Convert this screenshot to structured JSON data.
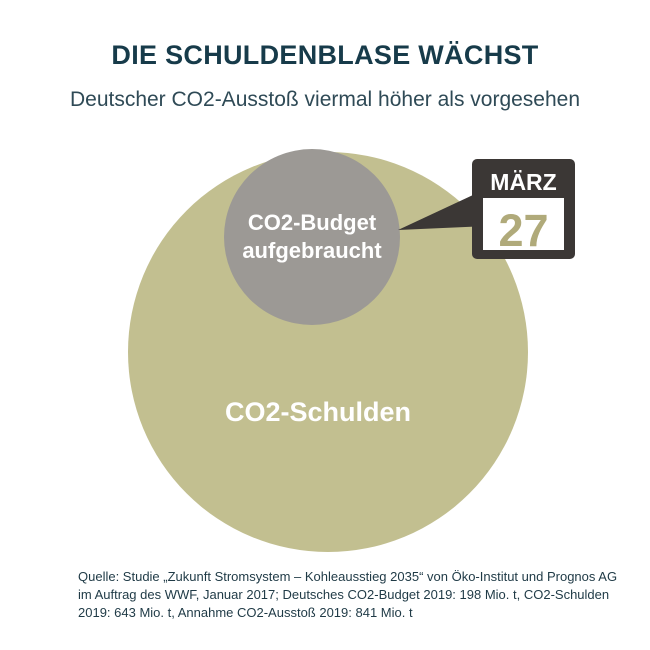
{
  "header": {
    "title": "DIE SCHULDENBLASE WÄCHST",
    "subtitle": "Deutscher CO2-Ausstoß viermal höher als vorgesehen"
  },
  "chart_data": {
    "type": "bubble",
    "bubbles": [
      {
        "label": "CO2-Schulden",
        "color": "#c2bf90"
      },
      {
        "label_line1": "CO2-Budget",
        "label_line2": "aufgebraucht",
        "color": "#9c9995"
      }
    ]
  },
  "calendar": {
    "month": "MÄRZ",
    "day": "27",
    "frame_color": "#3b3735",
    "day_color": "#b0aa7a"
  },
  "source": {
    "line1": "Quelle: Studie „Zukunft Stromsystem – Kohleausstieg 2035“ von Öko-Institut und Prognos AG",
    "line2": "im Auftrag des WWF, Januar 2017; Deutsches CO2-Budget 2019: 198 Mio. t, CO2-Schulden",
    "line3": "2019: 643  Mio. t, Annahme CO2-Ausstoß 2019: 841 Mio. t"
  }
}
